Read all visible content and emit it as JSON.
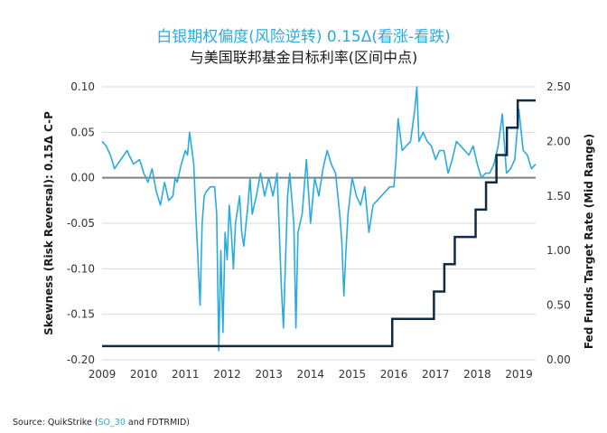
{
  "chart_data": {
    "type": "line",
    "title": "白银期权偏度(风险逆转) 0.15Δ(看涨-看跌)",
    "subtitle": "与美国联邦基金目标利率(区间中点)",
    "ylabel": "Skewness (Risk Reversal): 0.15Δ C-P",
    "y2label": "Fed Funds Target Rate (Mid Range)",
    "xlim": [
      2009,
      2019.4
    ],
    "ylim": [
      -0.2,
      0.1
    ],
    "y2lim": [
      0,
      2.5
    ],
    "xticks": [
      "2009",
      "2010",
      "2011",
      "2012",
      "2013",
      "2014",
      "2015",
      "2016",
      "2017",
      "2018",
      "2019"
    ],
    "yticks": [
      "0.10",
      "0.05",
      "0.00",
      "-0.05",
      "-0.10",
      "-0.15",
      "-0.20"
    ],
    "y2ticks": [
      "2.50",
      "2.00",
      "1.50",
      "1.00",
      "0.50",
      "0.00"
    ],
    "zero_line": true,
    "series": [
      {
        "axis": "left",
        "color": "#29abe2",
        "x": [
          2009.0,
          2009.1,
          2009.2,
          2009.3,
          2009.45,
          2009.6,
          2009.75,
          2009.9,
          2010.0,
          2010.1,
          2010.2,
          2010.3,
          2010.4,
          2010.5,
          2010.6,
          2010.7,
          2010.75,
          2010.8,
          2010.9,
          2011.0,
          2011.05,
          2011.1,
          2011.2,
          2011.25,
          2011.3,
          2011.35,
          2011.4,
          2011.45,
          2011.5,
          2011.6,
          2011.7,
          2011.75,
          2011.8,
          2011.85,
          2011.9,
          2011.95,
          2012.0,
          2012.05,
          2012.1,
          2012.15,
          2012.2,
          2012.3,
          2012.35,
          2012.4,
          2012.5,
          2012.55,
          2012.6,
          2012.7,
          2012.8,
          2012.9,
          2013.0,
          2013.1,
          2013.2,
          2013.3,
          2013.35,
          2013.4,
          2013.45,
          2013.5,
          2013.6,
          2013.65,
          2013.7,
          2013.8,
          2013.9,
          2014.0,
          2014.1,
          2014.2,
          2014.3,
          2014.4,
          2014.5,
          2014.6,
          2014.7,
          2014.75,
          2014.8,
          2014.85,
          2014.9,
          2015.0,
          2015.1,
          2015.2,
          2015.3,
          2015.4,
          2015.5,
          2015.6,
          2015.7,
          2015.8,
          2015.9,
          2016.0,
          2016.05,
          2016.1,
          2016.2,
          2016.3,
          2016.4,
          2016.5,
          2016.55,
          2016.6,
          2016.7,
          2016.8,
          2016.9,
          2017.0,
          2017.1,
          2017.2,
          2017.3,
          2017.4,
          2017.5,
          2017.6,
          2017.7,
          2017.8,
          2017.9,
          2018.0,
          2018.1,
          2018.2,
          2018.3,
          2018.4,
          2018.5,
          2018.6,
          2018.7,
          2018.8,
          2018.9,
          2019.0,
          2019.1,
          2019.2,
          2019.3,
          2019.4
        ],
        "values": [
          0.04,
          0.035,
          0.025,
          0.01,
          0.02,
          0.03,
          0.015,
          0.02,
          0.005,
          -0.005,
          0.01,
          -0.015,
          -0.03,
          -0.005,
          -0.025,
          -0.02,
          0.0,
          -0.005,
          0.015,
          0.03,
          0.025,
          0.05,
          0.015,
          -0.04,
          -0.09,
          -0.14,
          -0.05,
          -0.02,
          -0.015,
          -0.01,
          -0.01,
          -0.04,
          -0.19,
          -0.08,
          -0.17,
          -0.06,
          -0.09,
          -0.03,
          -0.06,
          -0.1,
          -0.05,
          -0.02,
          -0.06,
          -0.075,
          -0.03,
          0.0,
          -0.04,
          -0.02,
          0.005,
          -0.02,
          0.0,
          -0.02,
          0.005,
          -0.12,
          -0.165,
          -0.09,
          -0.02,
          0.005,
          -0.05,
          -0.165,
          -0.06,
          -0.04,
          0.02,
          -0.05,
          0.0,
          -0.02,
          0.01,
          0.03,
          0.015,
          0.005,
          -0.04,
          -0.07,
          -0.13,
          -0.08,
          -0.04,
          0.0,
          -0.02,
          -0.03,
          -0.01,
          -0.06,
          -0.03,
          -0.025,
          -0.02,
          -0.015,
          -0.01,
          -0.01,
          0.02,
          0.065,
          0.03,
          0.035,
          0.04,
          0.075,
          0.1,
          0.04,
          0.05,
          0.04,
          0.035,
          0.02,
          0.03,
          0.03,
          0.005,
          0.02,
          0.04,
          0.035,
          0.03,
          0.025,
          0.035,
          0.015,
          0.0,
          0.005,
          0.005,
          0.015,
          0.035,
          0.07,
          0.005,
          0.01,
          0.02,
          0.075,
          0.03,
          0.025,
          0.01,
          0.015
        ]
      },
      {
        "axis": "right",
        "color": "#0f2b45",
        "step": true,
        "x": [
          2009.0,
          2015.96,
          2016.96,
          2017.21,
          2017.46,
          2017.96,
          2018.21,
          2018.46,
          2018.71,
          2018.97,
          2019.4
        ],
        "values": [
          0.125,
          0.375,
          0.625,
          0.875,
          1.125,
          1.375,
          1.625,
          1.875,
          2.125,
          2.375,
          2.375
        ]
      }
    ]
  },
  "source": {
    "prefix": "Source: QuikStrike (",
    "highlight": "SO_30",
    "suffix": " and FDTRMID)"
  }
}
